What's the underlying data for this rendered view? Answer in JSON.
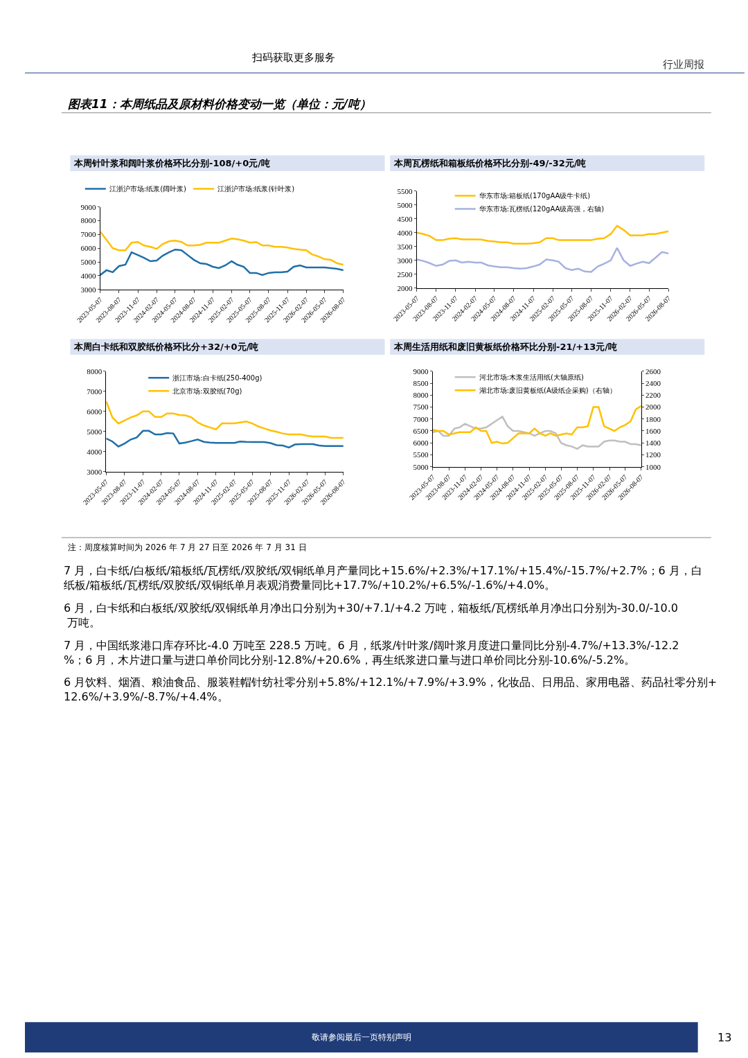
{
  "chart_data": [
    {
      "type": "line",
      "title": "本周针叶浆和阔叶浆价格环比分别-108/+0元/吨",
      "annotations": [
        "扫码获取更多服务",
        "行业周报",
        "图表11：本周纸品及原材料价格变动一览（单位：元/吨）"
      ],
      "x": [
        "2023-05-07",
        "2023-06-07",
        "2023-07-07",
        "2023-08-07",
        "2023-09-07",
        "2023-10-07",
        "2023-11-07",
        "2023-12-07",
        "2024-01-07",
        "2024-02-07",
        "2024-03-07",
        "2024-04-07",
        "2024-05-07",
        "2024-06-07",
        "2024-07-07",
        "2024-08-07",
        "2024-09-07",
        "2024-10-07",
        "2024-11-07",
        "2024-12-07",
        "2025-01-07",
        "2025-02-07",
        "2025-03-07",
        "2025-04-07",
        "2025-05-07",
        "2025-06-07",
        "2025-07-07",
        "2025-08-07",
        "2025-09-07",
        "2025-10-07",
        "2025-11-07",
        "2025-12-07",
        "2026-01-07",
        "2026-02-07",
        "2026-03-07",
        "2026-04-07",
        "2026-05-07",
        "2026-06-07",
        "2026-07-07",
        "2026-08-07"
      ],
      "xlim": [
        "2023-05-07",
        "2026-08-07"
      ],
      "xticks": [
        "2023-05-07",
        "2023-08-07",
        "2023-11-07",
        "2024-02-07",
        "2024-05-07",
        "2024-08-07",
        "2024-11-07",
        "2025-02-07",
        "2025-05-07",
        "2025-08-07",
        "2025-11-07",
        "2026-02-07",
        "2026-05-07",
        "2026-08-07"
      ],
      "ylim": [
        3000,
        9000
      ],
      "yticks": [
        3000,
        4000,
        5000,
        6000,
        7000,
        8000,
        9000
      ],
      "legend": "top",
      "series": [
        {
          "name": "江浙沪市场:纸浆(阔叶浆)",
          "color": "#1f6fa8",
          "values": [
            4050,
            4400,
            4250,
            4700,
            4800,
            5700,
            5500,
            5300,
            5050,
            5100,
            5450,
            5700,
            5900,
            5850,
            5500,
            5150,
            4900,
            4850,
            4650,
            4550,
            4750,
            5050,
            4800,
            4650,
            4200,
            4200,
            4050,
            4200,
            4250,
            4250,
            4300,
            4650,
            4750,
            4600,
            4600,
            4600,
            4600,
            4550,
            4500,
            4400
          ]
        },
        {
          "name": "江浙沪市场:纸浆(针叶浆)",
          "color": "#ffc000",
          "values": [
            7200,
            6600,
            6000,
            5850,
            5850,
            6400,
            6450,
            6200,
            6100,
            5950,
            6300,
            6500,
            6550,
            6450,
            6200,
            6200,
            6250,
            6400,
            6400,
            6400,
            6550,
            6700,
            6650,
            6550,
            6400,
            6450,
            6200,
            6200,
            6100,
            6100,
            6050,
            5950,
            5900,
            5850,
            5550,
            5400,
            5200,
            5150,
            4900,
            4800
          ]
        }
      ]
    },
    {
      "type": "line",
      "title": "本周瓦楞纸和箱板纸价格环比分别-49/-32元/吨",
      "x": [
        "2023-05-07",
        "2023-06-07",
        "2023-07-07",
        "2023-08-07",
        "2023-09-07",
        "2023-10-07",
        "2023-11-07",
        "2023-12-07",
        "2024-01-07",
        "2024-02-07",
        "2024-03-07",
        "2024-04-07",
        "2024-05-07",
        "2024-06-07",
        "2024-07-07",
        "2024-08-07",
        "2024-09-07",
        "2024-10-07",
        "2024-11-07",
        "2024-12-07",
        "2025-01-07",
        "2025-02-07",
        "2025-03-07",
        "2025-04-07",
        "2025-05-07",
        "2025-06-07",
        "2025-07-07",
        "2025-08-07",
        "2025-09-07",
        "2025-10-07",
        "2025-11-07",
        "2025-12-07",
        "2026-01-07",
        "2026-02-07",
        "2026-03-07",
        "2026-04-07",
        "2026-05-07",
        "2026-06-07",
        "2026-07-07",
        "2026-08-07"
      ],
      "xlim": [
        "2023-05-07",
        "2026-08-07"
      ],
      "xticks": [
        "2023-05-07",
        "2023-08-07",
        "2023-11-07",
        "2024-02-07",
        "2024-05-07",
        "2024-08-07",
        "2024-11-07",
        "2025-02-07",
        "2025-05-07",
        "2025-08-07",
        "2025-11-07",
        "2026-02-07",
        "2026-05-07",
        "2026-08-07"
      ],
      "ylim": [
        2000,
        5500
      ],
      "yticks": [
        2000,
        2500,
        3000,
        3500,
        4000,
        4500,
        5000,
        5500
      ],
      "legend": "top",
      "series": [
        {
          "name": "华东市场:箱板纸(170gAA级牛卡纸)",
          "color": "#ffc000",
          "values": [
            4000,
            3950,
            3880,
            3730,
            3730,
            3780,
            3800,
            3760,
            3760,
            3760,
            3750,
            3700,
            3680,
            3650,
            3650,
            3600,
            3600,
            3600,
            3620,
            3650,
            3800,
            3800,
            3730,
            3730,
            3730,
            3730,
            3730,
            3730,
            3780,
            3800,
            3950,
            4250,
            4100,
            3900,
            3900,
            3900,
            3950,
            3950,
            4000,
            4050
          ]
        },
        {
          "name": "华东市场:瓦楞纸(120gAA级高强，右轴)",
          "color": "#a5b1e0",
          "values": [
            3030,
            2980,
            2900,
            2800,
            2850,
            2980,
            3000,
            2920,
            2950,
            2920,
            2920,
            2820,
            2780,
            2750,
            2750,
            2720,
            2700,
            2720,
            2780,
            2850,
            3030,
            3000,
            2950,
            2720,
            2650,
            2700,
            2600,
            2580,
            2780,
            2880,
            3000,
            3450,
            3000,
            2800,
            2880,
            2950,
            2900,
            3100,
            3300,
            3250
          ]
        }
      ]
    },
    {
      "type": "line",
      "title": "本周白卡纸和双胶纸价格环比分+32/+0元/吨",
      "x": [
        "2023-05-07",
        "2023-06-07",
        "2023-07-07",
        "2023-08-07",
        "2023-09-07",
        "2023-10-07",
        "2023-11-07",
        "2023-12-07",
        "2024-01-07",
        "2024-02-07",
        "2024-03-07",
        "2024-04-07",
        "2024-05-07",
        "2024-06-07",
        "2024-07-07",
        "2024-08-07",
        "2024-09-07",
        "2024-10-07",
        "2024-11-07",
        "2024-12-07",
        "2025-01-07",
        "2025-02-07",
        "2025-03-07",
        "2025-04-07",
        "2025-05-07",
        "2025-06-07",
        "2025-07-07",
        "2025-08-07",
        "2025-09-07",
        "2025-10-07",
        "2025-11-07",
        "2025-12-07",
        "2026-01-07",
        "2026-02-07",
        "2026-03-07",
        "2026-04-07",
        "2026-05-07",
        "2026-06-07",
        "2026-07-07",
        "2026-08-07"
      ],
      "xlim": [
        "2023-05-07",
        "2026-08-07"
      ],
      "xticks": [
        "2023-05-07",
        "2023-08-07",
        "2023-11-07",
        "2024-02-07",
        "2024-05-07",
        "2024-08-07",
        "2024-11-07",
        "2025-02-07",
        "2025-05-07",
        "2025-08-07",
        "2025-11-07",
        "2026-02-07",
        "2026-05-07",
        "2026-08-07"
      ],
      "ylim": [
        3000,
        8000
      ],
      "yticks": [
        3000,
        4000,
        5000,
        6000,
        7000,
        8000
      ],
      "legend": "top",
      "series": [
        {
          "name": "浙江市场:白卡纸(250-400g)",
          "color": "#1f6fa8",
          "values": [
            4650,
            4500,
            4250,
            4400,
            4600,
            4700,
            5030,
            5030,
            4850,
            4850,
            4920,
            4900,
            4400,
            4450,
            4520,
            4600,
            4480,
            4450,
            4430,
            4430,
            4430,
            4430,
            4500,
            4480,
            4470,
            4470,
            4470,
            4420,
            4320,
            4300,
            4200,
            4350,
            4370,
            4370,
            4370,
            4300,
            4270,
            4270,
            4270,
            4270
          ]
        },
        {
          "name": "北京市场:双胶纸(70g)",
          "color": "#ffc000",
          "values": [
            6500,
            5700,
            5400,
            5550,
            5700,
            5800,
            6000,
            6000,
            5720,
            5720,
            5900,
            5900,
            5820,
            5800,
            5700,
            5450,
            5300,
            5200,
            5100,
            5400,
            5400,
            5400,
            5450,
            5500,
            5400,
            5250,
            5150,
            5050,
            4980,
            4900,
            4850,
            4850,
            4850,
            4780,
            4750,
            4750,
            4750,
            4680,
            4680,
            4680
          ]
        }
      ]
    },
    {
      "type": "line",
      "title": "本周生活用纸和废旧黄板纸价格环比分别-21/+13元/吨",
      "annotations": [
        "注：周度核算时间为 2026 年 7 月 27 日至 2026 年 7 月 31 日",
        "7 月，白卡纸/白板纸/箱板纸/瓦楞纸/双胶纸/双铜纸单月产量同比+15.6%/+2.3%/+17.1%/+15.4%/-15.7%/+2.7%；6 月，白纸板/箱板纸/瓦楞纸/双胶纸/双铜纸单月表观消费量同比+17.7%/+10.2%/+6.5%/-1.6%/+4.0%。",
        "6 月，白卡纸和白板纸/双胶纸/双铜纸单月净出口分别为+30/+7.1/+4.2 万吨，箱板纸/瓦楞纸单月净出口分别为-30.0/-10.0 万吨。",
        "7 月，中国纸浆港口库存环比-4.0 万吨至 228.5 万吨。6 月，纸浆/针叶浆/阔叶浆月度进口量同比分别-4.7%/+13.3%/-12.2%；6 月，木片进口量与进口单价同比分别-12.8%/+20.6%，再生纸浆进口量与进口单价同比分别-10.6%/-5.2%。",
        "6 月饮料、烟酒、粮油食品、服装鞋帽针纺社零分别+5.8%/+12.1%/+7.9%/+3.9%，化妆品、日用品、家用电器、药品社零分别+12.6%/+3.9%/-8.7%/+4.4%。",
        "敬请参阅最后一页特别声明",
        "13"
      ],
      "x": [
        "2023-05-07",
        "2023-06-07",
        "2023-07-07",
        "2023-08-07",
        "2023-09-07",
        "2023-10-07",
        "2023-11-07",
        "2023-12-07",
        "2024-01-07",
        "2024-02-07",
        "2024-03-07",
        "2024-04-07",
        "2024-05-07",
        "2024-06-07",
        "2024-07-07",
        "2024-08-07",
        "2024-09-07",
        "2024-10-07",
        "2024-11-07",
        "2024-12-07",
        "2025-01-07",
        "2025-02-07",
        "2025-03-07",
        "2025-04-07",
        "2025-05-07",
        "2025-06-07",
        "2025-07-07",
        "2025-08-07",
        "2025-09-07",
        "2025-10-07",
        "2025-11-07",
        "2025-12-07",
        "2026-01-07",
        "2026-02-07",
        "2026-03-07",
        "2026-04-07",
        "2026-05-07",
        "2026-06-07",
        "2026-07-07",
        "2026-08-07"
      ],
      "xlim": [
        "2023-05-07",
        "2026-08-07"
      ],
      "xticks": [
        "2023-05-07",
        "2023-08-07",
        "2023-11-07",
        "2024-02-07",
        "2024-05-07",
        "2024-08-07",
        "2024-11-07",
        "2025-02-07",
        "2025-05-07",
        "2025-08-07",
        "2025-11-07",
        "2026-02-07",
        "2026-05-07",
        "2026-08-07"
      ],
      "ylim": [
        5000,
        9000
      ],
      "yticks": [
        5000,
        5500,
        6000,
        6500,
        7000,
        7500,
        8000,
        8500,
        9000
      ],
      "y2lim": [
        1000,
        2600
      ],
      "y2ticks": [
        1000,
        1200,
        1400,
        1600,
        1800,
        2000,
        2200,
        2400,
        2600
      ],
      "legend": "top",
      "series": [
        {
          "name": "河北市场:木浆生活用纸(大轴原纸)",
          "color": "#bfbfbf",
          "values": [
            6450,
            6500,
            6300,
            6300,
            6600,
            6650,
            6800,
            6700,
            6600,
            6600,
            6650,
            6800,
            6950,
            7100,
            6700,
            6500,
            6500,
            6450,
            6400,
            6300,
            6400,
            6500,
            6500,
            6400,
            6000,
            5900,
            5850,
            5750,
            5900,
            5850,
            5850,
            5850,
            6050,
            6100,
            6100,
            6050,
            6050,
            5950,
            5950,
            5900
          ]
        },
        {
          "name": "湖北市场:废旧黄板纸(A级纸企采购)（右轴）",
          "color": "#ffc000",
          "axis": "y2",
          "values": [
            1620,
            1600,
            1600,
            1540,
            1560,
            1580,
            1580,
            1580,
            1660,
            1600,
            1600,
            1400,
            1420,
            1390,
            1400,
            1480,
            1560,
            1560,
            1560,
            1640,
            1560,
            1520,
            1560,
            1520,
            1540,
            1560,
            1540,
            1660,
            1660,
            1680,
            2000,
            2000,
            1680,
            1640,
            1600,
            1660,
            1700,
            1760,
            1960,
            2020
          ]
        }
      ]
    }
  ]
}
